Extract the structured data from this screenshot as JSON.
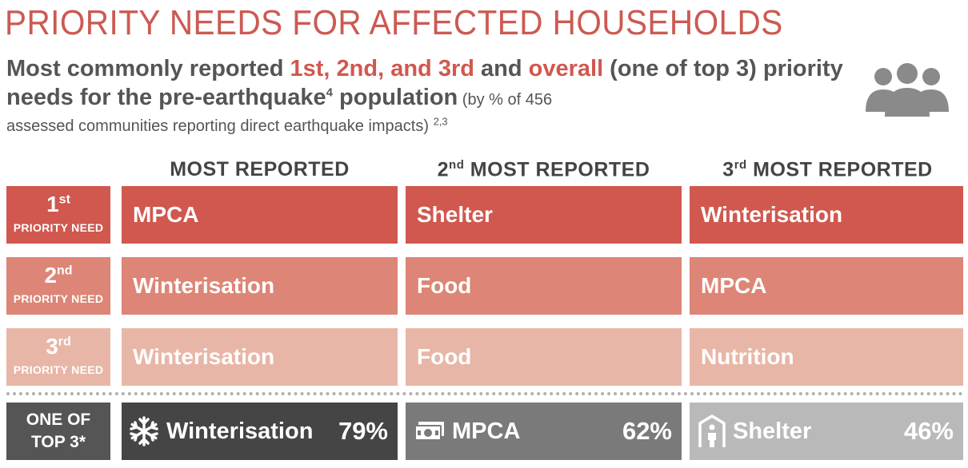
{
  "header": {
    "title": "PRIORITY NEEDS FOR AFFECTED HOUSEHOLDS",
    "subtitle": {
      "part1": "Most commonly reported ",
      "highlight1": "1st, 2nd, and 3rd",
      "part2": " and ",
      "highlight2": "overall",
      "part3": " (one of top 3) priority needs for the pre-earthquake",
      "sup1": "4",
      "part4": " population",
      "small": " (by % of 456",
      "line3": "assessed communities reporting direct earthquake impacts)",
      "sup2": "2,3"
    },
    "icon": "people-group-icon"
  },
  "columns": [
    {
      "ord": "",
      "sup": "",
      "label": "MOST REPORTED"
    },
    {
      "ord": "2",
      "sup": "nd",
      "label": " MOST REPORTED"
    },
    {
      "ord": "3",
      "sup": "rd",
      "label": " MOST REPORTED"
    }
  ],
  "rows": [
    {
      "ord": "1",
      "sup": "st",
      "sub": "PRIORITY NEED",
      "cells": [
        "MPCA",
        "Shelter",
        "Winterisation"
      ],
      "color": "#d0584e"
    },
    {
      "ord": "2",
      "sup": "nd",
      "sub": "PRIORITY NEED",
      "cells": [
        "Winterisation",
        "Food",
        "MPCA"
      ],
      "color": "#dd8576"
    },
    {
      "ord": "3",
      "sup": "rd",
      "sub": "PRIORITY NEED",
      "cells": [
        "Winterisation",
        "Food",
        "Nutrition"
      ],
      "color": "#e8b6a7"
    }
  ],
  "top3": {
    "label_line1": "ONE OF",
    "label_line2": "TOP 3*",
    "items": [
      {
        "name": "Winterisation",
        "pct": "79%",
        "icon": "snowflake-icon"
      },
      {
        "name": "MPCA",
        "pct": "62%",
        "icon": "cash-icon"
      },
      {
        "name": "Shelter",
        "pct": "46%",
        "icon": "shelter-icon"
      }
    ]
  },
  "colors": {
    "accent": "#cc5a52",
    "text": "#555555"
  }
}
